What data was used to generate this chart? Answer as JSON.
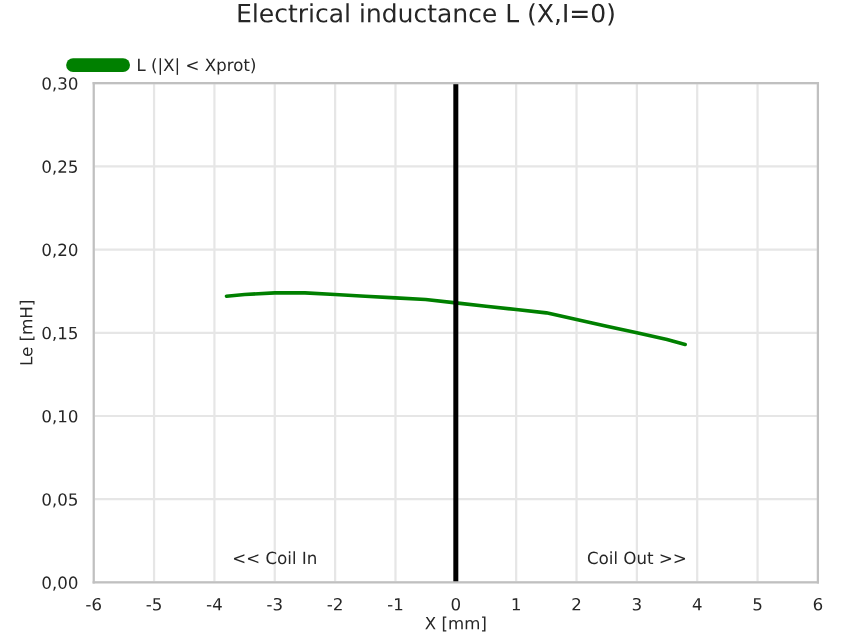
{
  "chart_data": {
    "type": "line",
    "title": "Electrical inductance L (X,I=0)",
    "xlabel": "X [mm]",
    "ylabel": "Le [mH]",
    "x": [
      -3.8,
      -3.5,
      -3.0,
      -2.5,
      -2.0,
      -1.5,
      -1.0,
      -0.5,
      0.0,
      0.5,
      1.0,
      1.5,
      2.0,
      2.5,
      3.0,
      3.5,
      3.8
    ],
    "series": [
      {
        "name": "L (|X| < Xprot)",
        "color": "#008000",
        "values": [
          0.172,
          0.173,
          0.174,
          0.174,
          0.173,
          0.172,
          0.171,
          0.17,
          0.168,
          0.166,
          0.164,
          0.162,
          0.158,
          0.154,
          0.15,
          0.146,
          0.143
        ]
      }
    ],
    "xlim": [
      -6,
      6
    ],
    "xticks": [
      -6,
      -5,
      -4,
      -3,
      -2,
      -1,
      0,
      1,
      2,
      3,
      4,
      5,
      6
    ],
    "ylim": [
      0,
      0.3
    ],
    "yticks": [
      {
        "value": 0,
        "label": "0,00"
      },
      {
        "value": 0.05,
        "label": "0,05"
      },
      {
        "value": 0.1,
        "label": "0,10"
      },
      {
        "value": 0.15,
        "label": "0,15"
      },
      {
        "value": 0.2,
        "label": "0,20"
      },
      {
        "value": 0.25,
        "label": "0,25"
      },
      {
        "value": 0.3,
        "label": "0,30"
      }
    ],
    "ref_lines": [
      {
        "axis": "x",
        "value": 0,
        "color": "#000000"
      }
    ],
    "annotations": [
      "<< Coil In",
      "Coil Out >>"
    ],
    "grid": true,
    "legend": "top left",
    "line_style": "solid",
    "marker": "none"
  }
}
